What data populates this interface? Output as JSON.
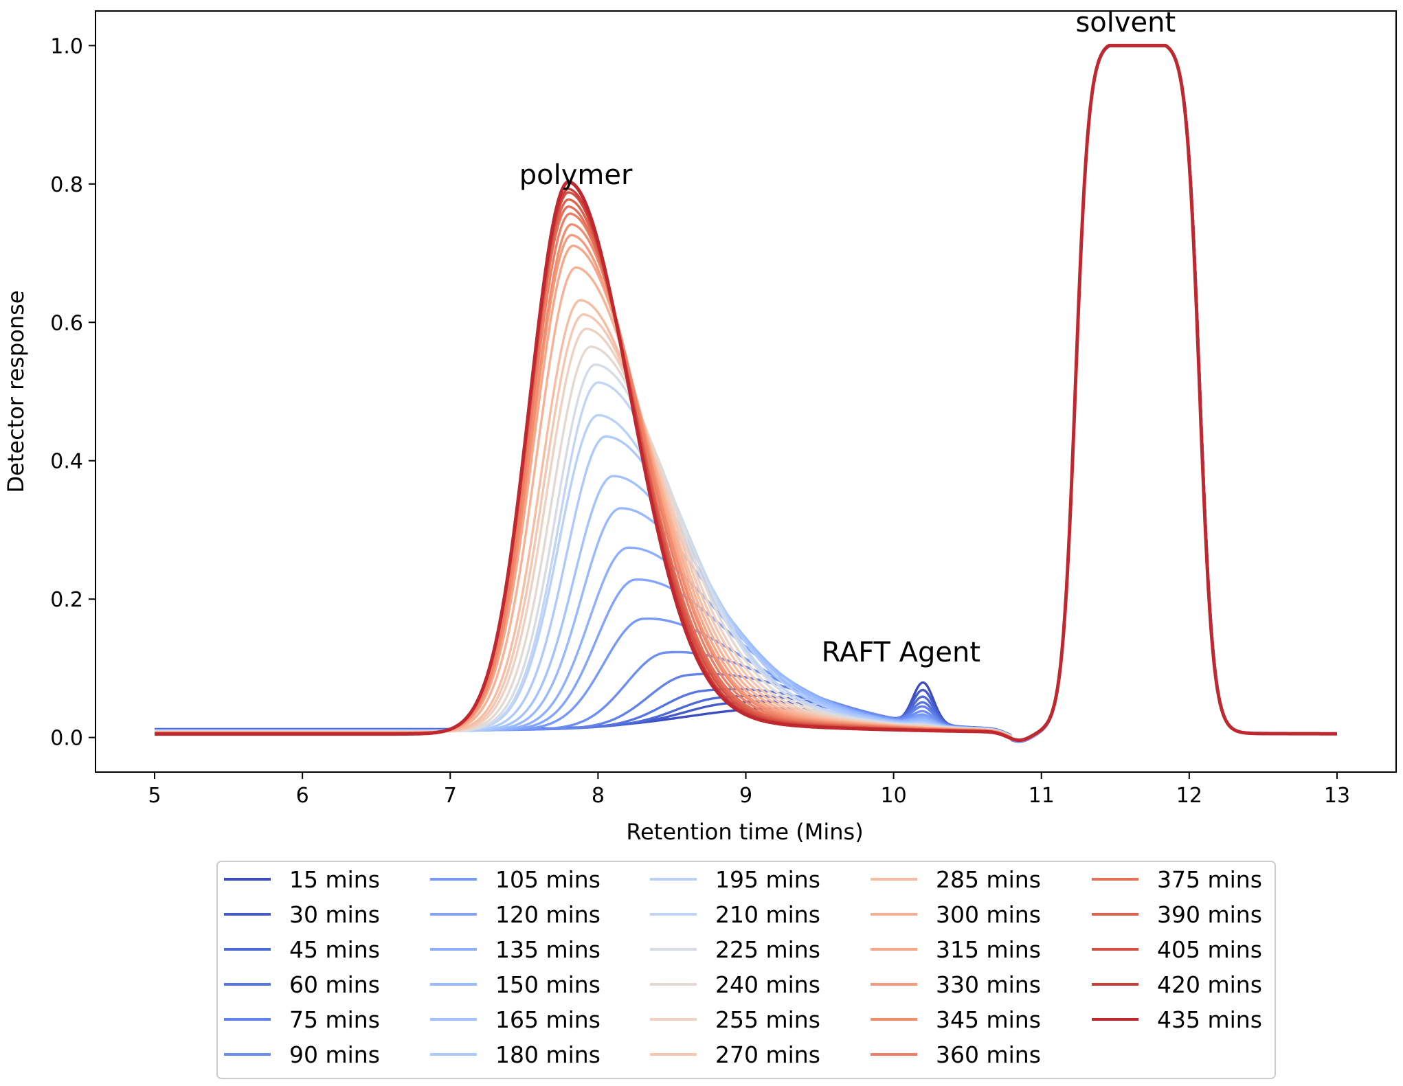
{
  "chart_data": {
    "type": "line",
    "title": "",
    "xlabel": "Retention time (Mins)",
    "ylabel": "Detector response",
    "xlim": [
      4.6,
      13.4
    ],
    "ylim": [
      -0.05,
      1.05
    ],
    "xticks": [
      "5",
      "6",
      "7",
      "8",
      "9",
      "10",
      "11",
      "12",
      "13"
    ],
    "yticks": [
      "0.0",
      "0.2",
      "0.4",
      "0.6",
      "0.8",
      "1.0"
    ],
    "grid": false,
    "legend_placement": "below plot, 5 columns",
    "annotations": [
      {
        "text": "polymer",
        "x": 7.85,
        "y": 0.8,
        "color": "#000000"
      },
      {
        "text": "RAFT Agent",
        "x": 10.05,
        "y": 0.11,
        "color": "#000000"
      },
      {
        "text": "solvent",
        "x": 11.57,
        "y": 1.02,
        "color": "#e8241c"
      }
    ],
    "series_model": {
      "polymer_peak_heights": [
        0.0,
        0.012,
        0.022,
        0.035,
        0.06,
        0.095,
        0.145,
        0.2,
        0.245,
        0.3,
        0.345,
        0.4,
        0.43,
        0.475,
        0.5,
        0.525,
        0.55,
        0.57,
        0.59,
        0.635,
        0.665,
        0.68,
        0.695,
        0.71,
        0.72,
        0.73,
        0.74,
        0.745,
        0.755
      ],
      "polymer_peak_positions": [
        8.9,
        8.85,
        8.8,
        8.7,
        8.6,
        8.45,
        8.3,
        8.25,
        8.2,
        8.15,
        8.1,
        8.05,
        8.0,
        8.0,
        7.98,
        7.95,
        7.92,
        7.9,
        7.88,
        7.85,
        7.83,
        7.82,
        7.82,
        7.81,
        7.8,
        7.8,
        7.8,
        7.8,
        7.8
      ],
      "raft_peak_heights": [
        0.06,
        0.048,
        0.038,
        0.03,
        0.024,
        0.018,
        0.014,
        0.011,
        0.009,
        0.007,
        0.005,
        0.004,
        0.003,
        0.002,
        0.002,
        0.001,
        0.001,
        0.001,
        0.0,
        0.0,
        0.0,
        0.0,
        0.0,
        0.0,
        0.0,
        0.0,
        0.0,
        0.0,
        0.0
      ],
      "raft_peak_position": 10.2,
      "solvent_plateau": [
        11.35,
        11.95
      ],
      "solvent_height": 1.0,
      "baseline": 0.005
    },
    "series": [
      {
        "name": "15 mins",
        "color": "#3b4cc0"
      },
      {
        "name": "30 mins",
        "color": "#445acc"
      },
      {
        "name": "45 mins",
        "color": "#4d68d7"
      },
      {
        "name": "60 mins",
        "color": "#5775e1"
      },
      {
        "name": "75 mins",
        "color": "#6282ea"
      },
      {
        "name": "90 mins",
        "color": "#6c8ef1"
      },
      {
        "name": "105 mins",
        "color": "#779af7"
      },
      {
        "name": "120 mins",
        "color": "#82a5fb"
      },
      {
        "name": "135 mins",
        "color": "#8db0fe"
      },
      {
        "name": "150 mins",
        "color": "#98b9ff"
      },
      {
        "name": "165 mins",
        "color": "#a3c2fe"
      },
      {
        "name": "180 mins",
        "color": "#aec9fc"
      },
      {
        "name": "195 mins",
        "color": "#b9d0f9"
      },
      {
        "name": "210 mins",
        "color": "#c3d5f4"
      },
      {
        "name": "225 mins",
        "color": "#d6dce4"
      },
      {
        "name": "240 mins",
        "color": "#e4d9d2"
      },
      {
        "name": "255 mins",
        "color": "#edd1c2"
      },
      {
        "name": "270 mins",
        "color": "#f3c7b1"
      },
      {
        "name": "285 mins",
        "color": "#f6bda2"
      },
      {
        "name": "300 mins",
        "color": "#f7b194"
      },
      {
        "name": "315 mins",
        "color": "#f7a688"
      },
      {
        "name": "330 mins",
        "color": "#f59a7b"
      },
      {
        "name": "345 mins",
        "color": "#f18d6f"
      },
      {
        "name": "360 mins",
        "color": "#ec7f63"
      },
      {
        "name": "375 mins",
        "color": "#e57058"
      },
      {
        "name": "390 mins",
        "color": "#de604d"
      },
      {
        "name": "405 mins",
        "color": "#d55042"
      },
      {
        "name": "420 mins",
        "color": "#cb3e38"
      },
      {
        "name": "435 mins",
        "color": "#c0282f"
      }
    ]
  }
}
